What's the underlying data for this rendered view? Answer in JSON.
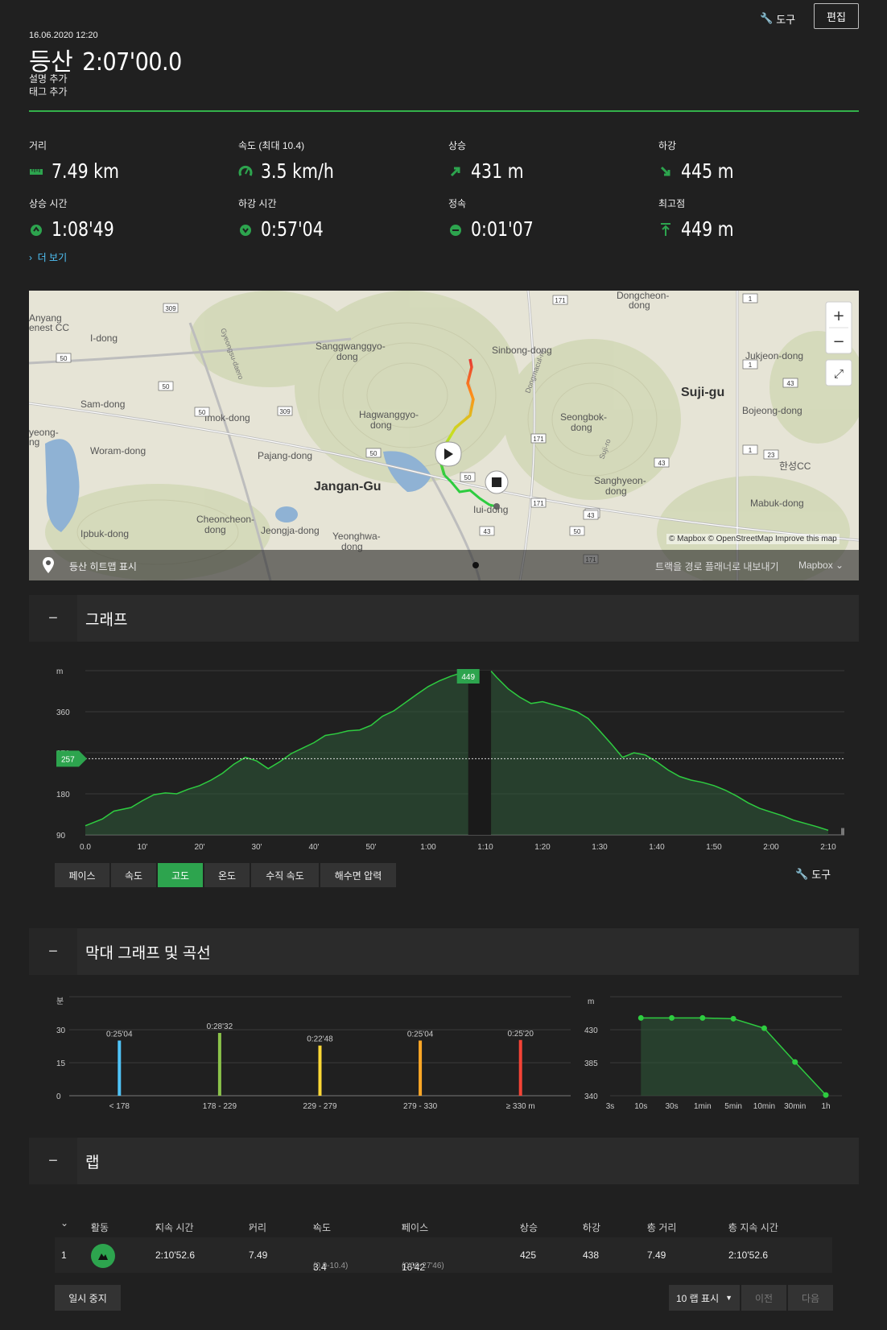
{
  "header": {
    "tools_label": "도구",
    "edit_label": "편집",
    "date": "16.06.2020 12:20",
    "activity": "등산",
    "duration": "2:07'00.0",
    "add_description": "설명 추가",
    "add_tag": "태그 추가"
  },
  "stats": [
    {
      "label": "거리",
      "value": "7.49 km",
      "icon": "ruler-icon"
    },
    {
      "label": "속도 (최대  10.4)",
      "value": "3.5 km/h",
      "icon": "speedometer-icon"
    },
    {
      "label": "상승",
      "value": "431 m",
      "icon": "arrow-up-right-icon"
    },
    {
      "label": "하강",
      "value": "445 m",
      "icon": "arrow-down-right-icon"
    },
    {
      "label": "상승 시간",
      "value": "1:08'49",
      "icon": "stopwatch-up-icon"
    },
    {
      "label": "하강 시간",
      "value": "0:57'04",
      "icon": "stopwatch-down-icon"
    },
    {
      "label": "정속",
      "value": "0:01'07",
      "icon": "stopwatch-pause-icon"
    },
    {
      "label": "최고점",
      "value": "449 m",
      "icon": "peak-icon"
    }
  ],
  "more_label": "더 보기",
  "map": {
    "places": [
      {
        "text": "Anyang"
      },
      {
        "text": "enest CC"
      },
      {
        "text": "I-dong"
      },
      {
        "text": "Sanggwanggyo-"
      },
      {
        "text": "dong"
      },
      {
        "text": "Sinbong-dong"
      },
      {
        "text": "Dongcheon-"
      },
      {
        "text": "dong"
      },
      {
        "text": "Jukjeon-dong"
      },
      {
        "text": "Suji-gu"
      },
      {
        "text": "Sam-dong"
      },
      {
        "text": "Imok-dong"
      },
      {
        "text": "Hagwanggyo-"
      },
      {
        "text": "dong"
      },
      {
        "text": "Seongbok-"
      },
      {
        "text": "dong"
      },
      {
        "text": "Bojeong-dong"
      },
      {
        "text": "yeong-"
      },
      {
        "text": "ng"
      },
      {
        "text": "Woram-dong"
      },
      {
        "text": "Pajang-dong"
      },
      {
        "text": "Jangan-Gu"
      },
      {
        "text": "Sanghyeon-"
      },
      {
        "text": "dong"
      },
      {
        "text": "한성CC"
      },
      {
        "text": "Iui-dong"
      },
      {
        "text": "Mabuk-dong"
      },
      {
        "text": "Ipbuk-dong"
      },
      {
        "text": "Cheoncheon-"
      },
      {
        "text": "dong"
      },
      {
        "text": "Jeongja-dong"
      },
      {
        "text": "Yeonghwa-"
      },
      {
        "text": "dong"
      },
      {
        "text": "Gyeongsu-daero"
      },
      {
        "text": "Dongmacul-ro"
      },
      {
        "text": "Suji-ro"
      }
    ],
    "route_shields": [
      "309",
      "50",
      "50",
      "50",
      "309",
      "50",
      "50",
      "171",
      "171",
      "43",
      "43",
      "171",
      "43",
      "50",
      "43",
      "1",
      "1",
      "1",
      "43",
      "23",
      "171"
    ],
    "attribution": "© Mapbox © OpenStreetMap",
    "improve": "Improve this map",
    "heatmap_label": "등산 히트맵 표시",
    "export_label": "트랙을 경로 플래너로 내보내기",
    "style_label": "Mapbox"
  },
  "graph_section": {
    "title": "그래프",
    "tools_label": "도구",
    "unit": "m",
    "peak_label": "449",
    "avg_label": "257",
    "tabs": [
      "페이스",
      "속도",
      "고도",
      "온도",
      "수직 속도",
      "해수면 압력"
    ],
    "active_tab": "고도"
  },
  "chart_data": [
    {
      "type": "area",
      "title": "",
      "ylabel": "m",
      "xlabel": "",
      "y_ticks": [
        90,
        180,
        270,
        360
      ],
      "ylim": [
        90,
        450
      ],
      "x_ticks": [
        "0.0",
        "10'",
        "20'",
        "30'",
        "40'",
        "50'",
        "1:00",
        "1:10",
        "1:20",
        "1:30",
        "1:40",
        "1:50",
        "2:00",
        "2:10"
      ],
      "x_minutes": [
        0,
        3,
        5,
        8,
        10,
        12,
        14,
        16,
        18,
        20,
        22,
        24,
        26,
        28,
        30,
        32,
        34,
        36,
        38,
        40,
        42,
        44,
        46,
        48,
        50,
        52,
        54,
        56,
        58,
        60,
        62,
        64,
        66,
        67,
        71,
        72,
        74,
        76,
        78,
        80,
        82,
        84,
        86,
        88,
        90,
        92,
        94,
        96,
        98,
        100,
        102,
        104,
        106,
        108,
        110,
        112,
        114,
        116,
        118,
        120,
        122,
        124,
        126,
        128,
        130
      ],
      "altitude_m": [
        110,
        125,
        142,
        150,
        165,
        178,
        182,
        180,
        190,
        198,
        210,
        225,
        245,
        260,
        252,
        235,
        250,
        268,
        280,
        292,
        308,
        312,
        318,
        320,
        330,
        350,
        362,
        380,
        398,
        415,
        428,
        438,
        446,
        449,
        449,
        435,
        410,
        392,
        378,
        382,
        375,
        368,
        360,
        345,
        318,
        290,
        260,
        270,
        265,
        250,
        232,
        218,
        210,
        205,
        198,
        188,
        175,
        160,
        148,
        140,
        132,
        122,
        115,
        108,
        100
      ],
      "peak": 449,
      "average": 257
    }
  ],
  "bar_section": {
    "title": "막대 그래프 및 곡선",
    "unit_left": "분",
    "unit_right": "m"
  },
  "bar_chart": {
    "type": "bar",
    "ylabel": "분",
    "y_ticks": [
      0,
      15,
      30
    ],
    "ylim": [
      0,
      45
    ],
    "categories": [
      "< 178",
      "178 - 229",
      "229 - 279",
      "279 - 330",
      "≥ 330 m"
    ],
    "values": [
      25.07,
      28.53,
      22.8,
      25.07,
      25.33
    ],
    "labels": [
      "0:25'04",
      "0:28'32",
      "0:22'48",
      "0:25'04",
      "0:25'20"
    ],
    "colors": [
      "#4fc3f7",
      "#8bc34a",
      "#fdd835",
      "#ffa726",
      "#f44336"
    ]
  },
  "curve_chart": {
    "type": "line",
    "ylabel": "m",
    "y_ticks": [
      340,
      385,
      430
    ],
    "ylim": [
      340,
      475
    ],
    "categories": [
      "3s",
      "10s",
      "30s",
      "1min",
      "5min",
      "10min",
      "30min",
      "1h"
    ],
    "values": [
      null,
      446,
      446,
      446,
      445,
      432,
      386,
      341
    ]
  },
  "laps_section": {
    "title": "랩",
    "headers": [
      "활동",
      "지속 시간",
      "거리",
      "속도",
      "페이스",
      "상승",
      "하강",
      "총 거리",
      "총 지속 시간"
    ],
    "row": {
      "index": "1",
      "duration": "2:10'52.6",
      "distance": "7.49",
      "speed": "3.4",
      "speed_range": "(0.0-10.4)",
      "pace": "16'42",
      "pace_range": "(0'00-27'46)",
      "ascent": "425",
      "descent": "438",
      "total_distance": "7.49",
      "total_duration": "2:10'52.6"
    },
    "pause_label": "일시 중지",
    "show_laps_label": "10 랩 표시",
    "prev_label": "이전",
    "next_label": "다음"
  }
}
